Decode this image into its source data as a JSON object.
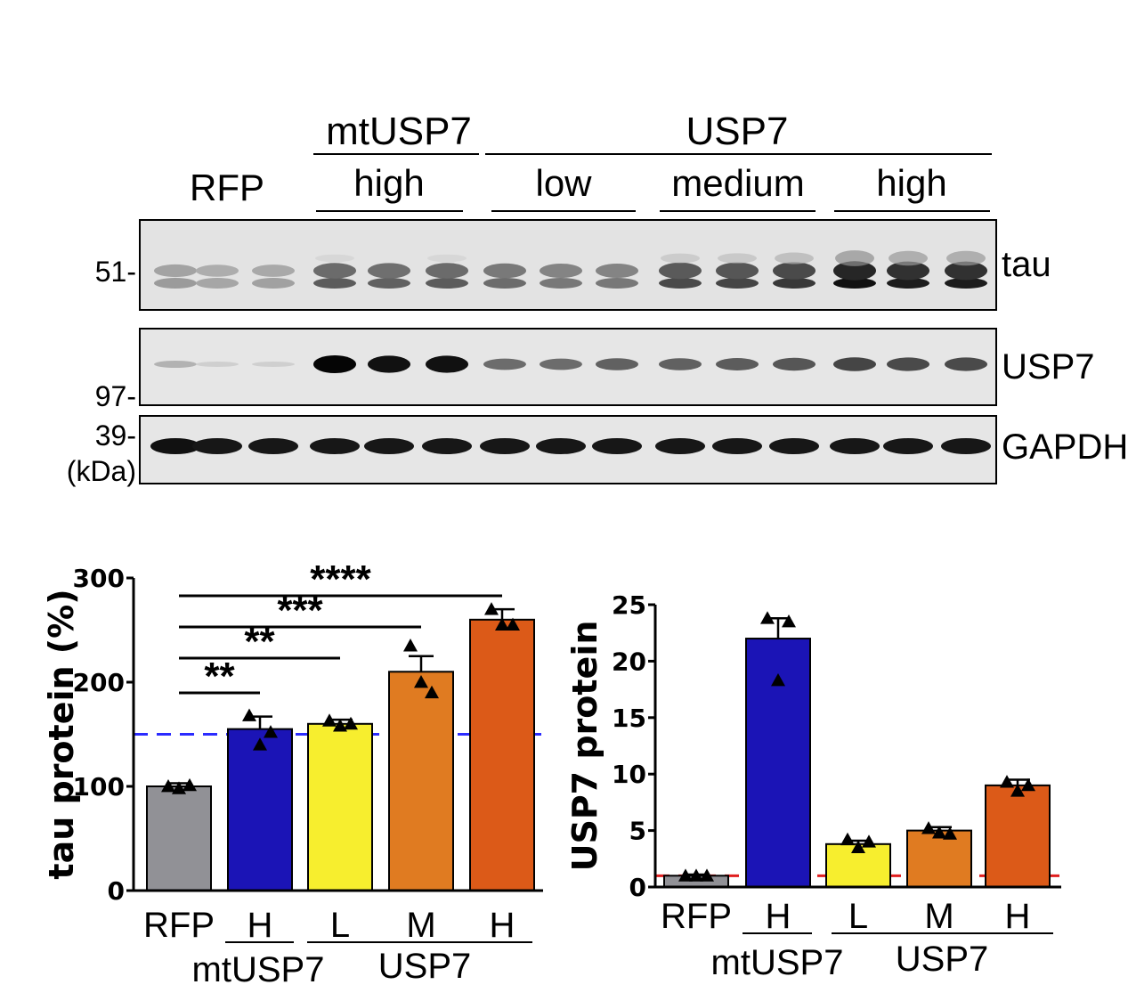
{
  "blot": {
    "headers": {
      "mtusp7": "mtUSP7",
      "usp7": "USP7",
      "rfp": "RFP",
      "levels": [
        "high",
        "low",
        "medium",
        "high"
      ]
    },
    "markers": [
      "51-",
      "97-",
      "39-",
      "(kDa)"
    ],
    "rows": [
      "tau",
      "USP7",
      "GAPDH"
    ],
    "band_intensity": {
      "tau": [
        0.35,
        0.3,
        0.32,
        0.62,
        0.6,
        0.62,
        0.55,
        0.5,
        0.5,
        0.7,
        0.72,
        0.78,
        0.95,
        0.9,
        0.9
      ],
      "usp7": [
        0.25,
        0.12,
        0.12,
        1.0,
        0.95,
        0.95,
        0.55,
        0.55,
        0.6,
        0.6,
        0.62,
        0.65,
        0.72,
        0.7,
        0.7
      ],
      "gapdh": [
        0.95,
        0.92,
        0.92,
        0.92,
        0.92,
        0.92,
        0.92,
        0.92,
        0.92,
        0.92,
        0.92,
        0.92,
        0.92,
        0.92,
        0.92
      ]
    }
  },
  "chart_data": [
    {
      "type": "bar",
      "ylabel": "tau protein (%)",
      "ylim": [
        0,
        300
      ],
      "yticks": [
        "300",
        "200",
        "100",
        "0"
      ],
      "categories": [
        "RFP",
        "H",
        "L",
        "M",
        "H"
      ],
      "groups": [
        {
          "label": "mtUSP7"
        },
        {
          "label": "USP7"
        }
      ],
      "values": [
        100,
        155,
        160,
        210,
        260
      ],
      "errors": [
        3,
        12,
        4,
        15,
        10
      ],
      "points": [
        [
          100,
          98,
          101
        ],
        [
          168,
          140,
          152
        ],
        [
          163,
          158,
          160
        ],
        [
          235,
          200,
          190
        ],
        [
          270,
          255,
          255
        ]
      ],
      "colors": [
        "#919196",
        "#1b14b6",
        "#f7ee2e",
        "#e07b21",
        "#dc5a18"
      ],
      "reference_line": {
        "value": 150,
        "color": "#2b2bff"
      },
      "significance": [
        {
          "label": "**",
          "from": 0,
          "to": 1
        },
        {
          "label": "**",
          "from": 0,
          "to": 2
        },
        {
          "label": "***",
          "from": 0,
          "to": 3
        },
        {
          "label": "****",
          "from": 0,
          "to": 4
        }
      ]
    },
    {
      "type": "bar",
      "ylabel": "USP7 protein",
      "ylim": [
        0,
        25
      ],
      "yticks": [
        "25",
        "20",
        "15",
        "10",
        "5",
        "0"
      ],
      "categories": [
        "RFP",
        "H",
        "L",
        "M",
        "H"
      ],
      "groups": [
        {
          "label": "mtUSP7"
        },
        {
          "label": "USP7"
        }
      ],
      "values": [
        1.0,
        22,
        3.8,
        5.0,
        9.0
      ],
      "errors": [
        0.1,
        1.8,
        0.3,
        0.3,
        0.5
      ],
      "points": [
        [
          1.0,
          1.0,
          1.0
        ],
        [
          23.8,
          18.3,
          23.5
        ],
        [
          4.2,
          3.5,
          4.0
        ],
        [
          5.2,
          4.8,
          4.7
        ],
        [
          9.3,
          8.5,
          9.0
        ]
      ],
      "colors": [
        "#919196",
        "#1b14b6",
        "#f7ee2e",
        "#e07b21",
        "#dc5a18"
      ],
      "reference_line": {
        "value": 1.0,
        "color": "#e01e1e"
      }
    }
  ]
}
